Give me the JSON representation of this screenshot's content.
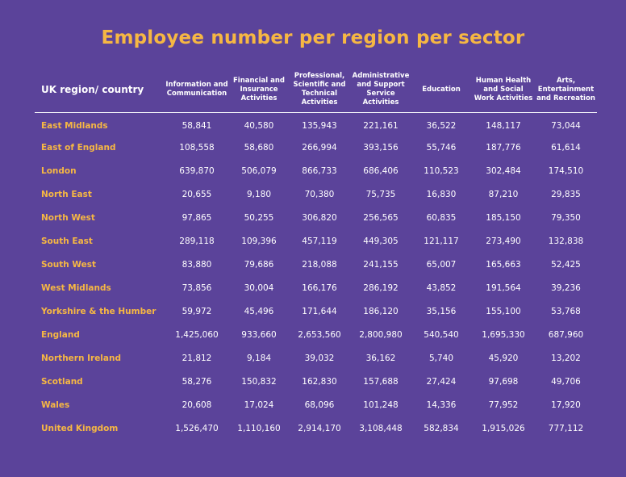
{
  "title": "Employee number per region per sector",
  "colors": {
    "background": "#5b439a",
    "accent": "#f6b743",
    "text": "#ffffff"
  },
  "table": {
    "region_header": "UK region/ country",
    "columns": [
      "Information and Communication",
      "Financial and Insurance Activities",
      "Professional, Scientific and Technical Activities",
      "Administrative and Support Service Activities",
      "Education",
      "Human Health and Social Work Activities",
      "Arts, Entertainment and Recreation"
    ],
    "rows": [
      {
        "region": "East Midlands",
        "values": [
          "58,841",
          "40,580",
          "135,943",
          "221,161",
          "36,522",
          "148,117",
          "73,044"
        ]
      },
      {
        "region": "East of England",
        "values": [
          "108,558",
          "58,680",
          "266,994",
          "393,156",
          "55,746",
          "187,776",
          "61,614"
        ]
      },
      {
        "region": "London",
        "values": [
          "639,870",
          "506,079",
          "866,733",
          "686,406",
          "110,523",
          "302,484",
          "174,510"
        ]
      },
      {
        "region": "North East",
        "values": [
          "20,655",
          "9,180",
          "70,380",
          "75,735",
          "16,830",
          "87,210",
          "29,835"
        ]
      },
      {
        "region": "North West",
        "values": [
          "97,865",
          "50,255",
          "306,820",
          "256,565",
          "60,835",
          "185,150",
          "79,350"
        ]
      },
      {
        "region": "South East",
        "values": [
          "289,118",
          "109,396",
          "457,119",
          "449,305",
          "121,117",
          "273,490",
          "132,838"
        ]
      },
      {
        "region": "South West",
        "values": [
          "83,880",
          "79,686",
          "218,088",
          "241,155",
          "65,007",
          "165,663",
          "52,425"
        ]
      },
      {
        "region": "West Midlands",
        "values": [
          "73,856",
          "30,004",
          "166,176",
          "286,192",
          "43,852",
          "191,564",
          "39,236"
        ]
      },
      {
        "region": "Yorkshire & the Humber",
        "values": [
          "59,972",
          "45,496",
          "171,644",
          "186,120",
          "35,156",
          "155,100",
          "53,768"
        ]
      },
      {
        "region": "England",
        "values": [
          "1,425,060",
          "933,660",
          "2,653,560",
          "2,800,980",
          "540,540",
          "1,695,330",
          "687,960"
        ]
      },
      {
        "region": "Northern Ireland",
        "values": [
          "21,812",
          "9,184",
          "39,032",
          "36,162",
          "5,740",
          "45,920",
          "13,202"
        ]
      },
      {
        "region": "Scotland",
        "values": [
          "58,276",
          "150,832",
          "162,830",
          "157,688",
          "27,424",
          "97,698",
          "49,706"
        ]
      },
      {
        "region": "Wales",
        "values": [
          "20,608",
          "17,024",
          "68,096",
          "101,248",
          "14,336",
          "77,952",
          "17,920"
        ]
      },
      {
        "region": "United Kingdom",
        "values": [
          "1,526,470",
          "1,110,160",
          "2,914,170",
          "3,108,448",
          "582,834",
          "1,915,026",
          "777,112"
        ]
      }
    ]
  }
}
